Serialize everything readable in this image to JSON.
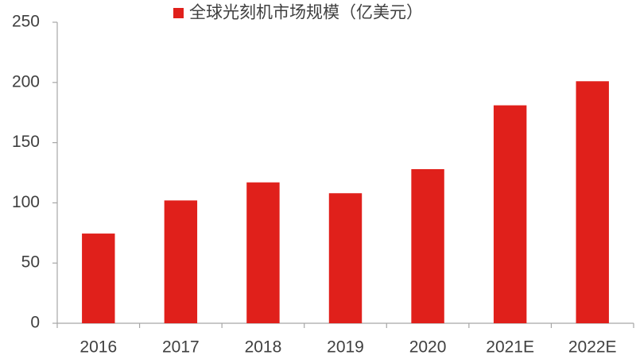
{
  "chart_data": {
    "type": "bar",
    "categories": [
      "2016",
      "2017",
      "2018",
      "2019",
      "2020",
      "2021E",
      "2022E"
    ],
    "series": [
      {
        "name": "全球光刻机市场规模（亿美元）",
        "color": "#e0201b",
        "values": [
          74.5,
          102,
          117,
          108,
          128,
          181,
          201
        ]
      }
    ],
    "ylim": [
      0,
      250
    ],
    "yticks": [
      0,
      50,
      100,
      150,
      200,
      250
    ],
    "grid": false,
    "legend": "top"
  }
}
